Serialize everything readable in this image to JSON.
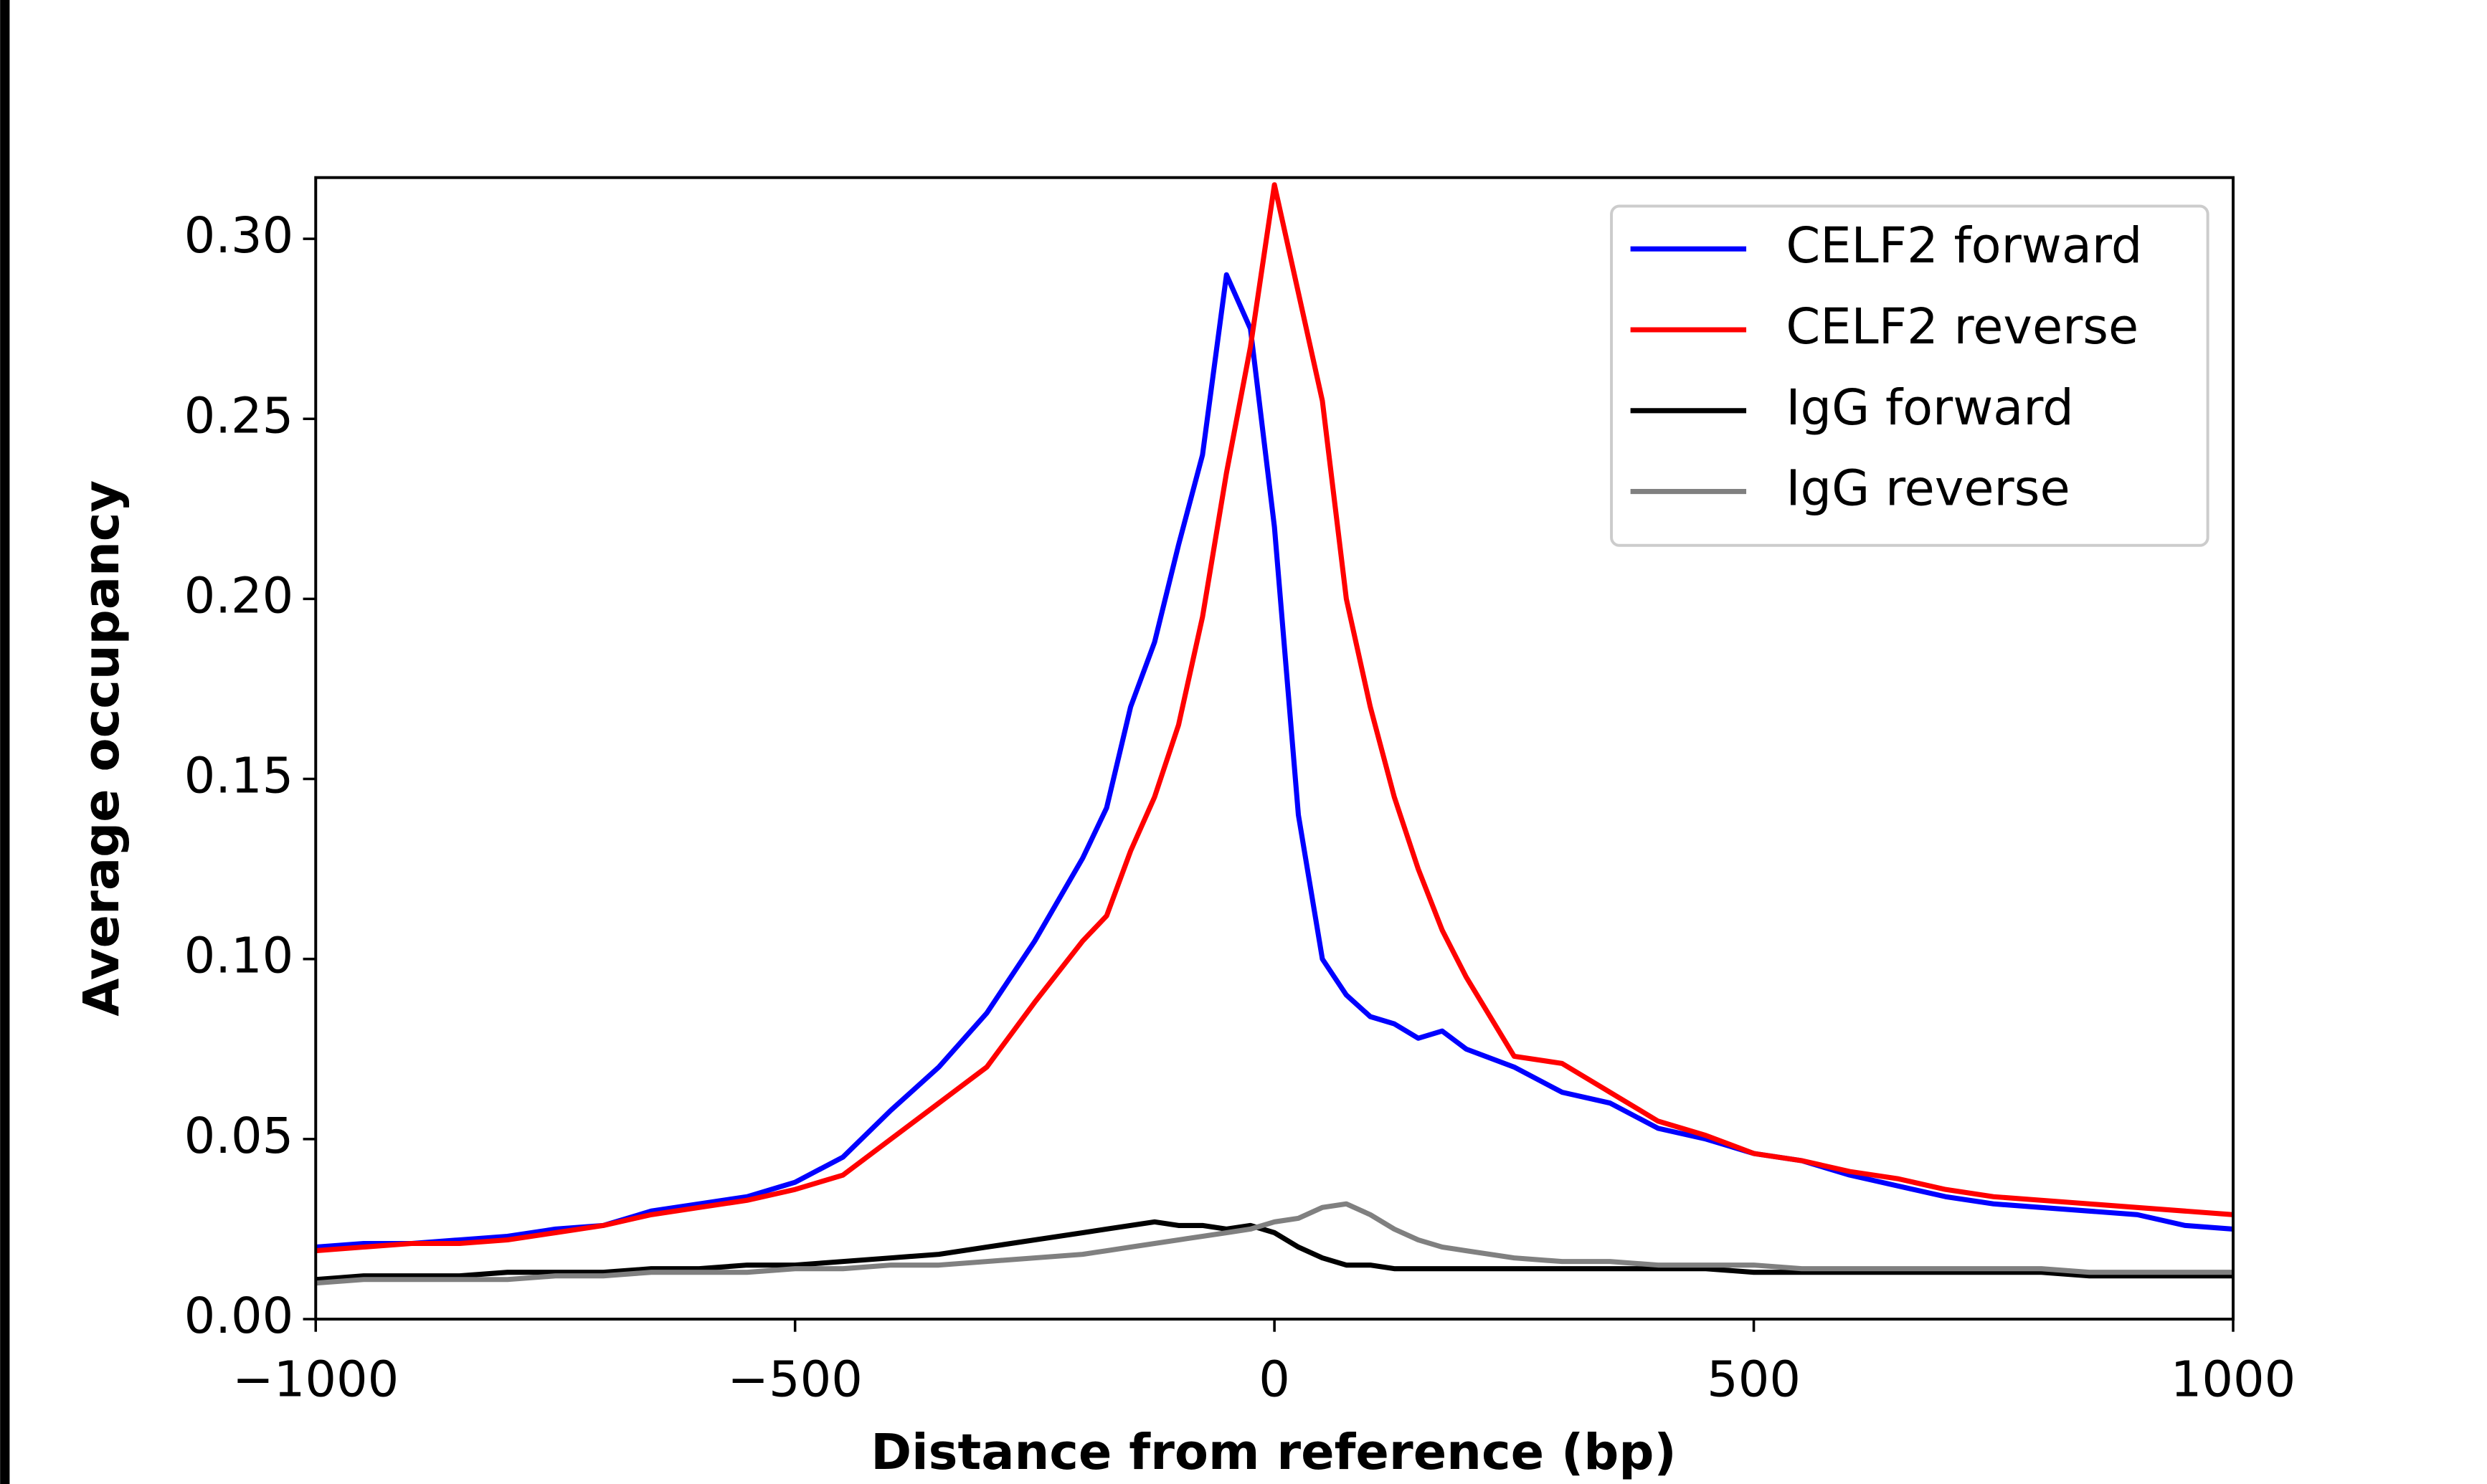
{
  "chart_data": {
    "type": "line",
    "xlabel": "Distance from reference (bp)",
    "ylabel": "Average occupancy",
    "x": [
      -1000,
      -950,
      -900,
      -850,
      -800,
      -750,
      -700,
      -650,
      -600,
      -550,
      -500,
      -450,
      -400,
      -350,
      -300,
      -250,
      -200,
      -175,
      -150,
      -125,
      -100,
      -75,
      -50,
      -25,
      0,
      25,
      50,
      75,
      100,
      125,
      150,
      175,
      200,
      250,
      300,
      350,
      400,
      450,
      500,
      550,
      600,
      650,
      700,
      750,
      800,
      850,
      900,
      950,
      1000
    ],
    "series": [
      {
        "name": "CELF2 forward",
        "color": "#0000ff",
        "values": [
          0.02,
          0.021,
          0.021,
          0.022,
          0.023,
          0.025,
          0.026,
          0.03,
          0.032,
          0.034,
          0.038,
          0.045,
          0.058,
          0.07,
          0.085,
          0.105,
          0.128,
          0.142,
          0.17,
          0.188,
          0.215,
          0.24,
          0.29,
          0.275,
          0.22,
          0.14,
          0.1,
          0.09,
          0.084,
          0.082,
          0.078,
          0.08,
          0.075,
          0.07,
          0.063,
          0.06,
          0.053,
          0.05,
          0.046,
          0.044,
          0.04,
          0.037,
          0.034,
          0.032,
          0.031,
          0.03,
          0.029,
          0.026,
          0.025
        ]
      },
      {
        "name": "CELF2 reverse",
        "color": "#ff0000",
        "values": [
          0.019,
          0.02,
          0.021,
          0.021,
          0.022,
          0.024,
          0.026,
          0.029,
          0.031,
          0.033,
          0.036,
          0.04,
          0.05,
          0.06,
          0.07,
          0.088,
          0.105,
          0.112,
          0.13,
          0.145,
          0.165,
          0.195,
          0.235,
          0.27,
          0.315,
          0.285,
          0.255,
          0.2,
          0.17,
          0.145,
          0.125,
          0.108,
          0.095,
          0.073,
          0.071,
          0.063,
          0.055,
          0.051,
          0.046,
          0.044,
          0.041,
          0.039,
          0.036,
          0.034,
          0.033,
          0.032,
          0.031,
          0.03,
          0.029
        ]
      },
      {
        "name": "IgG forward",
        "color": "#000000",
        "values": [
          0.011,
          0.012,
          0.012,
          0.012,
          0.013,
          0.013,
          0.013,
          0.014,
          0.014,
          0.015,
          0.015,
          0.016,
          0.017,
          0.018,
          0.02,
          0.022,
          0.024,
          0.025,
          0.026,
          0.027,
          0.026,
          0.026,
          0.025,
          0.026,
          0.024,
          0.02,
          0.017,
          0.015,
          0.015,
          0.014,
          0.014,
          0.014,
          0.014,
          0.014,
          0.014,
          0.014,
          0.014,
          0.014,
          0.013,
          0.013,
          0.013,
          0.013,
          0.013,
          0.013,
          0.013,
          0.012,
          0.012,
          0.012,
          0.012
        ]
      },
      {
        "name": "IgG reverse",
        "color": "#808080",
        "values": [
          0.01,
          0.011,
          0.011,
          0.011,
          0.011,
          0.012,
          0.012,
          0.013,
          0.013,
          0.013,
          0.014,
          0.014,
          0.015,
          0.015,
          0.016,
          0.017,
          0.018,
          0.019,
          0.02,
          0.021,
          0.022,
          0.023,
          0.024,
          0.025,
          0.027,
          0.028,
          0.031,
          0.032,
          0.029,
          0.025,
          0.022,
          0.02,
          0.019,
          0.017,
          0.016,
          0.016,
          0.015,
          0.015,
          0.015,
          0.014,
          0.014,
          0.014,
          0.014,
          0.014,
          0.014,
          0.013,
          0.013,
          0.013,
          0.013
        ]
      }
    ],
    "xlim": [
      -1000,
      1000
    ],
    "ylim": [
      0,
      0.317
    ],
    "xticks": [
      {
        "value": -1000,
        "label": "−1000"
      },
      {
        "value": -500,
        "label": "−500"
      },
      0,
      500,
      1000
    ],
    "yticks": [
      {
        "value": 0,
        "label": "0.00"
      },
      {
        "value": 0.05,
        "label": "0.05"
      },
      {
        "value": 0.1,
        "label": "0.10"
      },
      {
        "value": 0.15,
        "label": "0.15"
      },
      {
        "value": 0.2,
        "label": "0.20"
      },
      {
        "value": 0.25,
        "label": "0.25"
      },
      {
        "value": 0.3,
        "label": "0.30"
      }
    ],
    "grid": false,
    "legend": "upper right"
  }
}
